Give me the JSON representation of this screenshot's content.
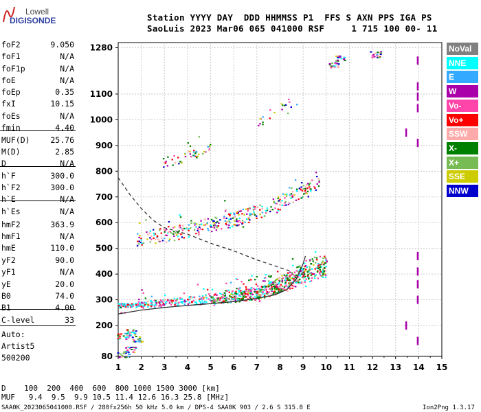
{
  "logo": {
    "top": "Lowell",
    "bottom": "DIGISONDE"
  },
  "header": {
    "line1": "Station YYYY DAY  DDD HHMMSS P1  FFS S AXN PPS IGA PS",
    "line2": "SaoLuis 2023 Mar06 065 041000 RSF     1 715 100 00- 11"
  },
  "params": [
    {
      "name": "foF2",
      "value": "9.050"
    },
    {
      "name": "foF1",
      "value": "N/A"
    },
    {
      "name": "foF1p",
      "value": "N/A"
    },
    {
      "name": "foE",
      "value": "N/A"
    },
    {
      "name": "foEp",
      "value": "0.35"
    },
    {
      "name": "fxI",
      "value": "10.15"
    },
    {
      "name": "foEs",
      "value": "N/A"
    },
    {
      "name": "fmin",
      "value": "4.40"
    },
    {
      "name": "MUF(D)",
      "value": "25.76"
    },
    {
      "name": "M(D)",
      "value": "2.85"
    },
    {
      "name": "D",
      "value": "N/A"
    },
    {
      "name": "h`F",
      "value": "300.0"
    },
    {
      "name": "h`F2",
      "value": "300.0"
    },
    {
      "name": "h`E",
      "value": "N/A"
    },
    {
      "name": "h`Es",
      "value": "N/A"
    },
    {
      "name": "hmF2",
      "value": "363.9"
    },
    {
      "name": "hmF1",
      "value": "N/A"
    },
    {
      "name": "hmE",
      "value": "110.0"
    },
    {
      "name": "yF2",
      "value": "90.0"
    },
    {
      "name": "yF1",
      "value": "N/A"
    },
    {
      "name": "yE",
      "value": "20.0"
    },
    {
      "name": "B0",
      "value": "74.0"
    },
    {
      "name": "B1",
      "value": "4.00"
    },
    {
      "name": "C-level",
      "value": "33"
    }
  ],
  "auto": {
    "label": "Auto:",
    "artist": "Artist5",
    "version": "500200"
  },
  "legend": [
    {
      "label": "NoVal",
      "color": "#808080",
      "text": "#ffffff"
    },
    {
      "label": "NNE",
      "color": "#00ffff",
      "text": "#ffffff"
    },
    {
      "label": "E",
      "color": "#33aaff",
      "text": "#ffffff"
    },
    {
      "label": "W",
      "color": "#aa00aa",
      "text": "#ffffff"
    },
    {
      "label": "Vo-",
      "color": "#ff44aa",
      "text": "#ffffff"
    },
    {
      "label": "Vo+",
      "color": "#ff0000",
      "text": "#ffffff"
    },
    {
      "label": "SSW",
      "color": "#ffaaaa",
      "text": "#ffffff"
    },
    {
      "label": "X-",
      "color": "#008000",
      "text": "#ffffff"
    },
    {
      "label": "X+",
      "color": "#77bb55",
      "text": "#ffffff"
    },
    {
      "label": "SSE",
      "color": "#cccc00",
      "text": "#ffffff"
    },
    {
      "label": "NNW",
      "color": "#0000cc",
      "text": "#ffffff"
    }
  ],
  "footer": {
    "d_row": "D    100  200  400  600  800 1000 1500 3000 [km]",
    "muf_row": "MUF   9.4  9.5  9.9 10.5 11.4 12.6 16.3 25.8 [MHz]",
    "file_line": "SAA0K_2023065041000.RSF / 280fx256h 50 kHz 5.0 km / DPS-4 SAA0K 903 / 2.6 S 315.8 E",
    "version": "Ion2Png 1.3.17"
  },
  "chart_data": {
    "type": "scatter",
    "title": "",
    "xlabel": "",
    "ylabel": "",
    "xlim": [
      1,
      15
    ],
    "ylim": [
      80,
      1300
    ],
    "x_ticks": [
      1,
      2,
      3,
      4,
      5,
      6,
      7,
      8,
      9,
      10,
      11,
      12,
      13,
      14,
      15
    ],
    "y_ticks": [
      80,
      200,
      300,
      400,
      500,
      600,
      700,
      800,
      900,
      1000,
      1100,
      1280
    ],
    "grid": true,
    "series": [
      {
        "kind": "o_trace",
        "points": [
          [
            1.0,
            280
          ],
          [
            2.0,
            285
          ],
          [
            3.0,
            290
          ],
          [
            4.0,
            298
          ],
          [
            5.0,
            305
          ],
          [
            6.0,
            315
          ],
          [
            7.0,
            330
          ],
          [
            8.0,
            355
          ],
          [
            8.6,
            380
          ],
          [
            9.0,
            400
          ],
          [
            9.5,
            410
          ],
          [
            10.0,
            420
          ]
        ]
      },
      {
        "kind": "x_trace",
        "points": [
          [
            5.0,
            300
          ],
          [
            6.0,
            310
          ],
          [
            7.0,
            325
          ],
          [
            7.5,
            345
          ],
          [
            8.0,
            365
          ],
          [
            8.5,
            385
          ],
          [
            9.0,
            410
          ],
          [
            9.5,
            430
          ],
          [
            10.0,
            440
          ]
        ]
      },
      {
        "kind": "second_hop",
        "points": [
          [
            1.8,
            540
          ],
          [
            2.5,
            550
          ],
          [
            3.0,
            555
          ],
          [
            4.0,
            570
          ],
          [
            5.0,
            595
          ],
          [
            6.0,
            615
          ],
          [
            7.0,
            645
          ],
          [
            8.0,
            680
          ],
          [
            9.0,
            720
          ],
          [
            9.7,
            770
          ]
        ]
      },
      {
        "kind": "third_hop",
        "points": [
          [
            2.8,
            830
          ],
          [
            3.5,
            845
          ],
          [
            4.0,
            860
          ],
          [
            4.5,
            875
          ],
          [
            5.0,
            890
          ]
        ]
      },
      {
        "kind": "high_echo",
        "points": [
          [
            7.0,
            990
          ],
          [
            7.5,
            1020
          ],
          [
            8.0,
            1040
          ],
          [
            8.5,
            1060
          ],
          [
            9.0,
            1080
          ]
        ]
      },
      {
        "kind": "sporadic",
        "points": [
          [
            1.2,
            160
          ],
          [
            1.5,
            175
          ],
          [
            1.8,
            150
          ],
          [
            1.2,
            90
          ],
          [
            1.5,
            110
          ],
          [
            10.3,
            1215
          ],
          [
            10.6,
            1240
          ],
          [
            12.1,
            1255
          ]
        ]
      }
    ],
    "lines": [
      {
        "style": "solid",
        "points": [
          [
            1.0,
            245
          ],
          [
            2.0,
            260
          ],
          [
            3.0,
            270
          ],
          [
            4.0,
            278
          ],
          [
            5.0,
            285
          ],
          [
            6.0,
            293
          ],
          [
            7.0,
            305
          ],
          [
            7.8,
            320
          ],
          [
            8.3,
            340
          ],
          [
            8.7,
            380
          ],
          [
            9.0,
            440
          ],
          [
            9.1,
            470
          ]
        ]
      },
      {
        "style": "dashed",
        "points": [
          [
            1.0,
            775
          ],
          [
            1.5,
            710
          ],
          [
            2.0,
            655
          ],
          [
            2.5,
            610
          ],
          [
            3.0,
            580
          ],
          [
            4.0,
            555
          ],
          [
            5.0,
            520
          ],
          [
            6.0,
            490
          ],
          [
            7.0,
            455
          ],
          [
            8.0,
            425
          ],
          [
            8.5,
            410
          ]
        ]
      }
    ],
    "markers": [
      {
        "x": 13.95,
        "y": 1230
      },
      {
        "x": 13.95,
        "y": 1130
      },
      {
        "x": 13.95,
        "y": 1090
      },
      {
        "x": 13.95,
        "y": 1045
      },
      {
        "x": 13.95,
        "y": 910
      },
      {
        "x": 13.95,
        "y": 470
      },
      {
        "x": 13.95,
        "y": 410
      },
      {
        "x": 13.95,
        "y": 360
      },
      {
        "x": 13.95,
        "y": 300
      },
      {
        "x": 13.95,
        "y": 140
      },
      {
        "x": 13.45,
        "y": 950
      },
      {
        "x": 13.45,
        "y": 200
      }
    ]
  }
}
